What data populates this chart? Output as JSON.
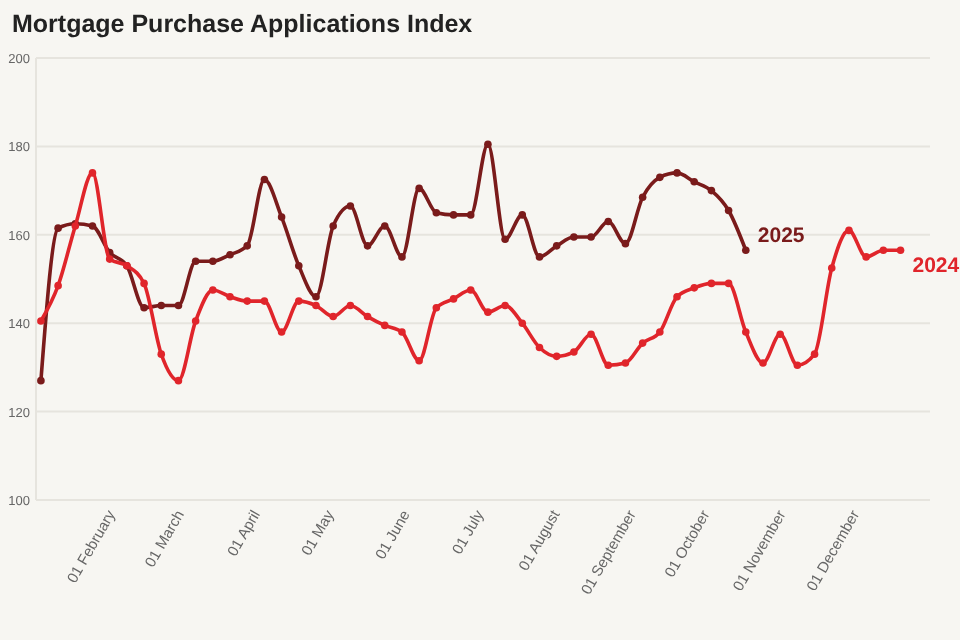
{
  "chart_data": {
    "type": "line",
    "title": "Mortgage Purchase Applications Index",
    "xlim": [
      "--01-01",
      "--12-31"
    ],
    "xticks": [
      {
        "value": "--02-01",
        "label": "01 February"
      },
      {
        "value": "--03-01",
        "label": "01 March"
      },
      {
        "value": "--04-01",
        "label": "01 April"
      },
      {
        "value": "--05-01",
        "label": "01 May"
      },
      {
        "value": "--06-01",
        "label": "01 June"
      },
      {
        "value": "--07-01",
        "label": "01 July"
      },
      {
        "value": "--08-01",
        "label": "01 August"
      },
      {
        "value": "--09-01",
        "label": "01 September"
      },
      {
        "value": "--10-01",
        "label": "01 October"
      },
      {
        "value": "--11-01",
        "label": "01 November"
      },
      {
        "value": "--12-01",
        "label": "01 December"
      }
    ],
    "ylim": [
      100,
      200
    ],
    "yticks": [
      100,
      120,
      140,
      160,
      180,
      200
    ],
    "grid": "y",
    "marker": "circle",
    "line_style": "solid",
    "series": [
      {
        "name": "2025",
        "color": "#7a1b1b",
        "x": [
          "--01-03",
          "--01-10",
          "--01-17",
          "--01-24",
          "--01-31",
          "--02-07",
          "--02-14",
          "--02-21",
          "--02-28",
          "--03-07",
          "--03-14",
          "--03-21",
          "--03-28",
          "--04-04",
          "--04-11",
          "--04-18",
          "--04-25",
          "--05-02",
          "--05-09",
          "--05-16",
          "--05-23",
          "--05-30",
          "--06-06",
          "--06-13",
          "--06-20",
          "--06-27",
          "--07-04",
          "--07-11",
          "--07-18",
          "--07-25",
          "--08-01",
          "--08-08",
          "--08-15",
          "--08-22",
          "--08-29",
          "--09-05",
          "--09-12",
          "--09-19",
          "--09-26",
          "--10-03",
          "--10-10",
          "--10-17"
        ],
        "values": [
          127,
          161.5,
          162.5,
          162,
          156,
          153,
          143.5,
          144,
          144,
          154,
          154,
          155.5,
          157.5,
          172.5,
          164,
          153,
          146,
          162,
          166.5,
          157.5,
          162,
          155,
          170.5,
          165,
          164.5,
          164.5,
          180.5,
          159,
          164.5,
          155,
          157.5,
          159.5,
          159.5,
          163,
          158,
          168.5,
          173,
          174,
          172,
          170,
          165.5,
          156.5
        ]
      },
      {
        "name": "2024",
        "color": "#e0252b",
        "x": [
          "--01-03",
          "--01-10",
          "--01-17",
          "--01-24",
          "--01-31",
          "--02-07",
          "--02-14",
          "--02-21",
          "--02-28",
          "--03-07",
          "--03-14",
          "--03-21",
          "--03-28",
          "--04-04",
          "--04-11",
          "--04-18",
          "--04-25",
          "--05-02",
          "--05-09",
          "--05-16",
          "--05-23",
          "--05-30",
          "--06-06",
          "--06-13",
          "--06-20",
          "--06-27",
          "--07-04",
          "--07-11",
          "--07-18",
          "--07-25",
          "--08-01",
          "--08-08",
          "--08-15",
          "--08-22",
          "--08-29",
          "--09-05",
          "--09-12",
          "--09-19",
          "--09-26",
          "--10-03",
          "--10-10",
          "--10-17",
          "--10-24",
          "--10-31",
          "--11-07",
          "--11-14",
          "--11-21",
          "--11-28",
          "--12-05",
          "--12-12",
          "--12-19"
        ],
        "values": [
          140.5,
          148.5,
          162,
          174,
          154.5,
          153,
          149,
          133,
          127,
          140.5,
          147.5,
          146,
          145,
          145,
          138,
          145,
          144,
          141.5,
          144,
          141.5,
          139.5,
          138,
          131.5,
          143.5,
          145.5,
          147.5,
          142.5,
          144,
          140,
          134.5,
          132.5,
          133.5,
          137.5,
          130.5,
          131,
          135.5,
          138,
          146,
          148,
          149,
          149,
          138,
          131,
          137.5,
          130.5,
          133,
          152.5,
          161,
          155,
          156.5,
          156.5
        ]
      }
    ]
  }
}
